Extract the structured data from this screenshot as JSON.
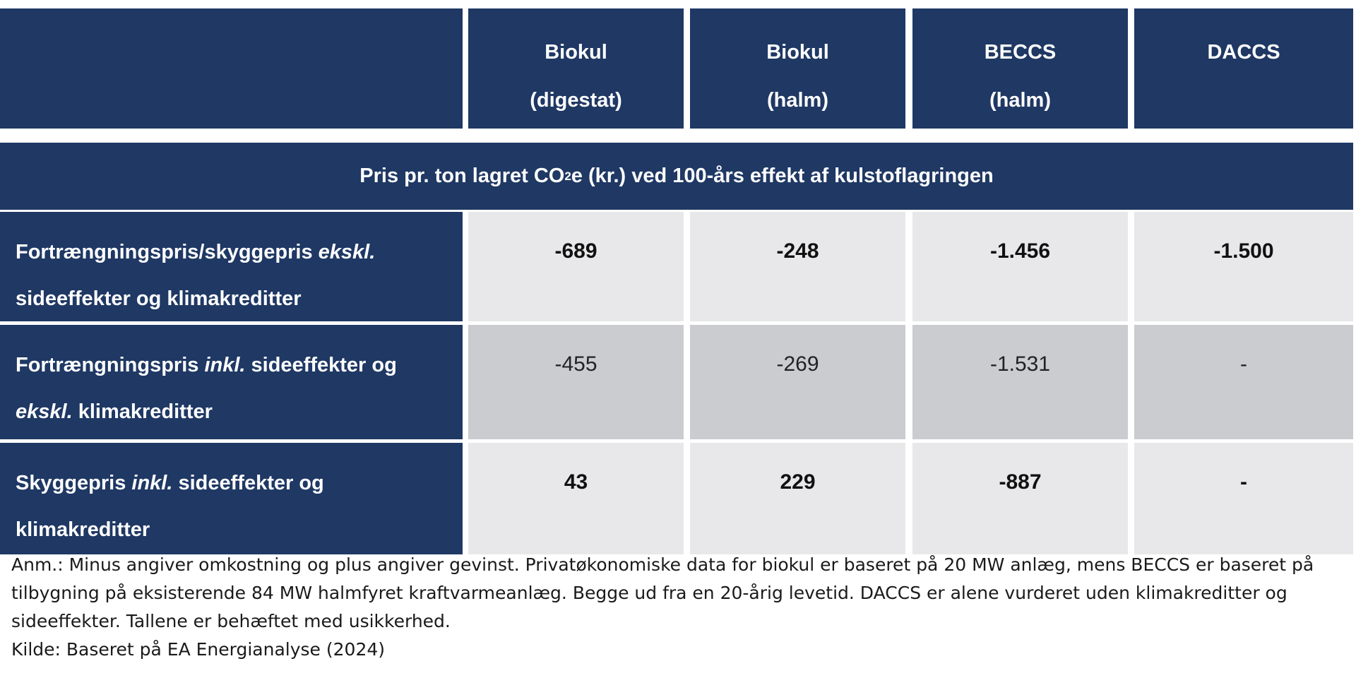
{
  "header": {
    "col1": {
      "line1": "Biokul",
      "line2": "(digestat)"
    },
    "col2": {
      "line1": "Biokul",
      "line2": "(halm)"
    },
    "col3": {
      "line1": "BECCS",
      "line2": "(halm)"
    },
    "col4": {
      "line1": "DACCS",
      "line2": ""
    }
  },
  "band": {
    "before": "Pris pr. ton lagret CO",
    "sub": "2",
    "after": " e (kr.) ved 100-års effekt af kulstoflagringen"
  },
  "rows": [
    {
      "label_parts": [
        "Fortrængningspris/skyggepris ",
        "ekskl.",
        " sideeffekter og klimakreditter"
      ],
      "values": [
        "-689",
        "-248",
        "-1.456",
        "-1.500"
      ]
    },
    {
      "label_parts": [
        "Fortrængningspris ",
        "inkl.",
        " sideeffekter og ",
        "ekskl.",
        " klimakreditter"
      ],
      "values": [
        "-455",
        "-269",
        "-1.531",
        "-"
      ]
    },
    {
      "label_parts": [
        "Skyggepris ",
        "inkl.",
        " sideeffekter og klimakreditter"
      ],
      "values": [
        "43",
        "229",
        "-887",
        "-"
      ]
    }
  ],
  "notes": {
    "anm": "Anm.: Minus angiver omkostning og plus angiver gevinst.  Privatøkonomiske data for biokul er baseret på 20 MW anlæg, mens BECCS er baseret på tilbygning på eksisterende 84 MW halmfyret kraftvarmeanlæg. Begge ud fra en 20-årig levetid. DACCS er alene vurderet uden klimakreditter og sideeffekter. Tallene er behæftet med usikkerhed.",
    "kilde": "Kilde: Baseret på EA Energianalyse (2024)"
  },
  "colors": {
    "header_bg": "#1f3864",
    "row_light": "#e8e8ea",
    "row_mid": "#cbccd0"
  }
}
